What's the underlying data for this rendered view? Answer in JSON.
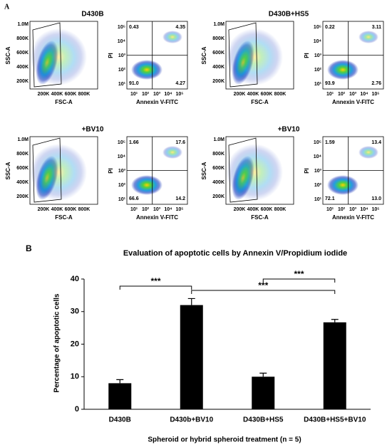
{
  "panel_a": {
    "label": "A",
    "fsc": {
      "y_label": "SSC-A",
      "x_label": "FSC-A",
      "yticks": [
        "1.0M",
        "800K",
        "600K",
        "400K",
        "200K"
      ],
      "xticks": [
        "200K",
        "400K",
        "600K",
        "800K"
      ]
    },
    "annexin": {
      "y_label": "PI",
      "x_label": "Annexin V-FITC",
      "yticks": [
        "10⁵",
        "10⁴",
        "10³",
        "10²",
        "10¹"
      ],
      "xticks": [
        "10¹",
        "10²",
        "10³",
        "10⁴",
        "10⁵"
      ]
    },
    "samples": [
      {
        "title": "D430B",
        "quadrants": {
          "ul": "0.43",
          "ur": "4.35",
          "ll": "91.0",
          "lr": "4.27"
        }
      },
      {
        "title": "D430B+HS5",
        "quadrants": {
          "ul": "0.22",
          "ur": "3.11",
          "ll": "93.9",
          "lr": "2.76"
        }
      },
      {
        "title": "+BV10",
        "quadrants": {
          "ul": "1.66",
          "ur": "17.6",
          "ll": "66.6",
          "lr": "14.2"
        }
      },
      {
        "title": "+BV10",
        "quadrants": {
          "ul": "1.59",
          "ur": "13.4",
          "ll": "72.1",
          "lr": "13.0"
        }
      }
    ]
  },
  "chart_data": {
    "type": "bar",
    "panel_label": "B",
    "title": "Evaluation of apoptotic cells by Annexin V/Propidium iodide",
    "y_label": "Percentage of apoptotic cells",
    "x_label": "Spheroid or hybrid spheroid treatment (n = 5)",
    "categories": [
      "D430B",
      "D430b+BV10",
      "D430B+HS5",
      "D430B+HS5+BV10"
    ],
    "values": [
      8,
      32,
      10,
      26.7
    ],
    "errors": [
      1.1,
      2,
      1.1,
      0.9
    ],
    "color": "#000000",
    "ylim": [
      0,
      40
    ],
    "yticks": [
      0,
      10,
      20,
      30,
      40
    ],
    "annotations": [
      {
        "text": "***",
        "between": [
          "D430B",
          "D430b+BV10"
        ]
      },
      {
        "text": "***",
        "between": [
          "D430b+BV10",
          "D430B+HS5+BV10"
        ]
      },
      {
        "text": "***",
        "between": [
          "D430B+HS5",
          "D430B+HS5+BV10"
        ]
      }
    ]
  }
}
